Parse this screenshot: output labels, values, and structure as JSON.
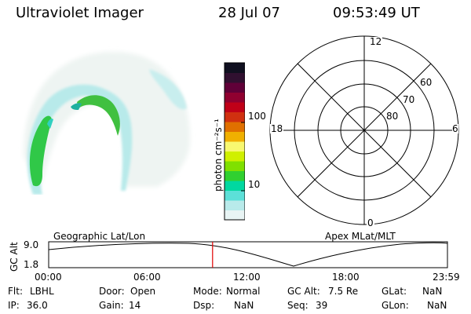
{
  "header": {
    "title": "Ultraviolet Imager",
    "date": "28 Jul 07",
    "time": "09:53:49 UT"
  },
  "colorbar": {
    "label_html": "photon cm⁻²s⁻¹",
    "ticks": [
      "100",
      "10"
    ],
    "colors": [
      "#e8f4f4",
      "#b8eaea",
      "#5ce0d8",
      "#00d8a0",
      "#30d030",
      "#80e000",
      "#d0f000",
      "#f8f870",
      "#f0b000",
      "#e07000",
      "#d03010",
      "#c00018",
      "#900030",
      "#600038",
      "#301030",
      "#101020"
    ]
  },
  "polar": {
    "mlt_labels": {
      "top": "12",
      "left": "18",
      "right": "6",
      "bottom": "0"
    },
    "lat_labels": [
      "60",
      "70",
      "80"
    ]
  },
  "timeline": {
    "left_label": "Geographic Lat/Lon",
    "right_label": "Apex  MLat/MLT",
    "y_axis_title": "GC Alt",
    "y_ticks": [
      "9.0",
      "1.8"
    ],
    "x_ticks": [
      "00:00",
      "06:00",
      "12:00",
      "18:00",
      "23:59"
    ],
    "current_time_fraction": 0.411
  },
  "info": {
    "row1": [
      {
        "label": "Flt:",
        "value": "LBHL"
      },
      {
        "label": "Door:",
        "value": "Open"
      },
      {
        "label": "Mode:",
        "value": "Normal"
      },
      {
        "label": "GC Alt:",
        "value": "7.5 Re"
      },
      {
        "label": "GLat:",
        "value": "NaN"
      }
    ],
    "row2": [
      {
        "label": "IP:",
        "value": "36.0"
      },
      {
        "label": "Gain:",
        "value": "14"
      },
      {
        "label": "Dsp:",
        "value": "NaN"
      },
      {
        "label": "Seq:",
        "value": "39"
      },
      {
        "label": "GLon:",
        "value": "NaN"
      }
    ]
  }
}
